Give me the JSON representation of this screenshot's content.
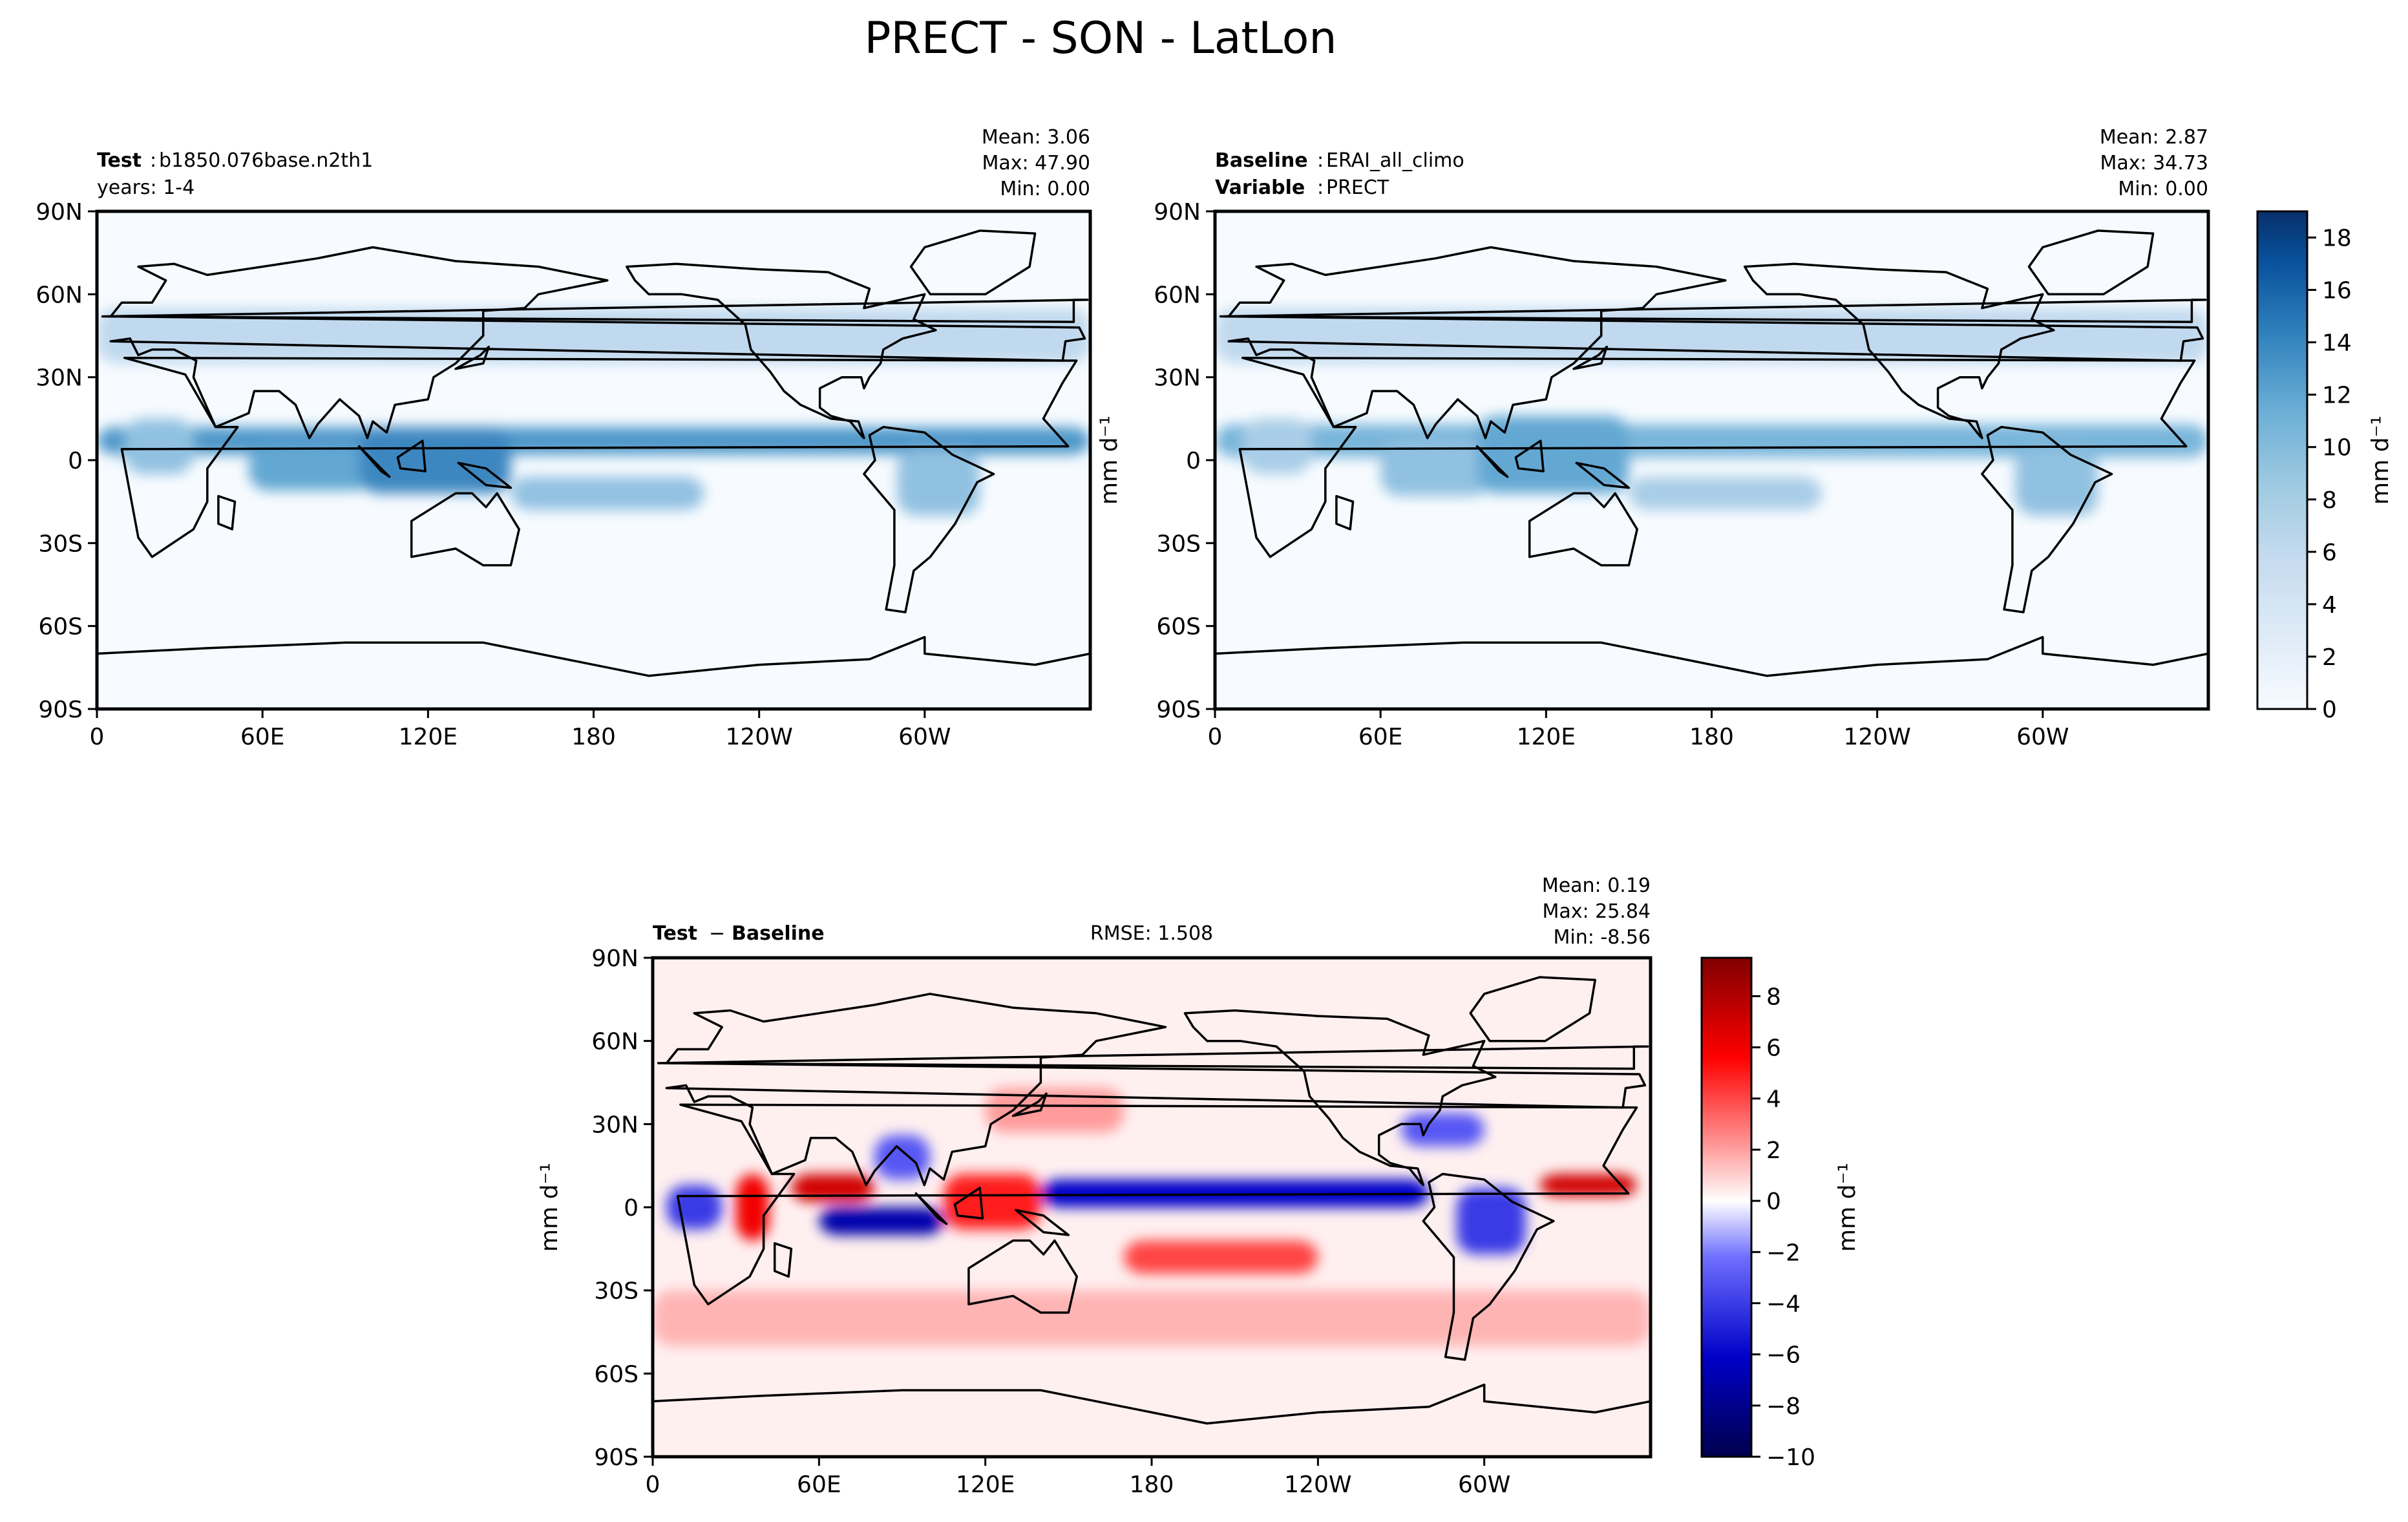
{
  "figure": {
    "suptitle": "PRECT - SON - LatLon",
    "colors": {
      "frame": "#000000",
      "blues_low": "#f7fbff",
      "blues_high": "#08306b",
      "div_low": "#00004d",
      "div_mid": "#ffffff",
      "div_high": "#800000"
    }
  },
  "chart_data": [
    {
      "type": "heatmap",
      "panel": "test",
      "label_bold": "Test",
      "label_text": "b1850.076base.n2th1",
      "label_line2": "years: 1-4",
      "stats": {
        "mean": "Mean:  3.06",
        "max": "Max: 47.90",
        "min": "Min:  0.00"
      },
      "x_ticks": [
        "0",
        "60E",
        "120E",
        "180",
        "120W",
        "60W"
      ],
      "y_ticks": [
        "90N",
        "60N",
        "30N",
        "0",
        "30S",
        "60S",
        "90S"
      ],
      "xlim": [
        0,
        360
      ],
      "ylim": [
        -90,
        90
      ],
      "colormap": "Blues",
      "features": [
        {
          "kind": "itcz",
          "lon": [
            0,
            360
          ],
          "lat": 7,
          "width": 5,
          "value": 9
        },
        {
          "kind": "indian-ocean",
          "lon": [
            55,
            100
          ],
          "lat": -3,
          "width": 8,
          "value": 8
        },
        {
          "kind": "maritime-continent",
          "lon": [
            95,
            150
          ],
          "lat": 0,
          "width": 12,
          "value": 10
        },
        {
          "kind": "spcz",
          "lon": [
            150,
            220
          ],
          "lat": -12,
          "width": 6,
          "value": 6
        },
        {
          "kind": "africa",
          "lon": [
            10,
            35
          ],
          "lat": 5,
          "width": 10,
          "value": 6
        },
        {
          "kind": "south-america",
          "lon": [
            290,
            320
          ],
          "lat": -8,
          "width": 12,
          "value": 6
        },
        {
          "kind": "storm-tracks",
          "lon": [
            0,
            360
          ],
          "lat": 45,
          "width": 10,
          "value": 4
        }
      ]
    },
    {
      "type": "heatmap",
      "panel": "baseline",
      "label_bold": "Baseline",
      "label_text": "ERAI_all_climo",
      "label_bold2": "Variable",
      "label_text2": "PRECT",
      "stats": {
        "mean": "Mean:  2.87",
        "max": "Max: 34.73",
        "min": "Min:  0.00"
      },
      "x_ticks": [
        "0",
        "60E",
        "120E",
        "180",
        "120W",
        "60W"
      ],
      "y_ticks": [
        "90N",
        "60N",
        "30N",
        "0",
        "30S",
        "60S",
        "90S"
      ],
      "xlim": [
        0,
        360
      ],
      "ylim": [
        -90,
        90
      ],
      "colormap": "Blues",
      "colorbar": {
        "ticks": [
          "0",
          "2",
          "4",
          "6",
          "8",
          "10",
          "12",
          "14",
          "16",
          "18"
        ],
        "range": [
          0,
          19
        ],
        "units": "mm d⁻¹"
      },
      "ylabel": "mm d⁻¹",
      "features": [
        {
          "kind": "itcz",
          "lon": [
            0,
            360
          ],
          "lat": 7,
          "width": 6,
          "value": 7
        },
        {
          "kind": "indian-ocean",
          "lon": [
            60,
            100
          ],
          "lat": -3,
          "width": 10,
          "value": 6
        },
        {
          "kind": "maritime-continent",
          "lon": [
            95,
            150
          ],
          "lat": 2,
          "width": 14,
          "value": 8
        },
        {
          "kind": "spcz",
          "lon": [
            150,
            220
          ],
          "lat": -12,
          "width": 6,
          "value": 5
        },
        {
          "kind": "africa",
          "lon": [
            10,
            35
          ],
          "lat": 5,
          "width": 10,
          "value": 5
        },
        {
          "kind": "south-america",
          "lon": [
            290,
            320
          ],
          "lat": -8,
          "width": 12,
          "value": 6
        },
        {
          "kind": "storm-tracks",
          "lon": [
            0,
            360
          ],
          "lat": 45,
          "width": 10,
          "value": 4
        }
      ]
    },
    {
      "type": "heatmap",
      "panel": "difference",
      "label_bold": "Test",
      "label_minus": "−",
      "label_bold2": "Baseline",
      "rmse": "RMSE: 1.508",
      "stats": {
        "mean": "Mean:  0.19",
        "max": "Max: 25.84",
        "min": "Min: -8.56"
      },
      "x_ticks": [
        "0",
        "60E",
        "120E",
        "180",
        "120W",
        "60W"
      ],
      "y_ticks": [
        "90N",
        "60N",
        "30N",
        "0",
        "30S",
        "60S",
        "90S"
      ],
      "xlim": [
        0,
        360
      ],
      "ylim": [
        -90,
        90
      ],
      "colormap": "seismic",
      "colorbar": {
        "ticks": [
          "−10",
          "−8",
          "−6",
          "−4",
          "−2",
          "0",
          "2",
          "4",
          "6",
          "8"
        ],
        "range": [
          -10,
          9.5
        ],
        "units": "mm d⁻¹"
      },
      "ylabel": "mm d⁻¹",
      "features": [
        {
          "kind": "arabian-sea-wet",
          "lon": [
            50,
            80
          ],
          "lat": 7,
          "width": 5,
          "value": 7
        },
        {
          "kind": "indian-ocean-dry",
          "lon": [
            60,
            105
          ],
          "lat": -5,
          "width": 5,
          "value": -7
        },
        {
          "kind": "east-africa-wet",
          "lon": [
            30,
            42
          ],
          "lat": 0,
          "width": 12,
          "value": 6
        },
        {
          "kind": "west-africa-dry",
          "lon": [
            5,
            25
          ],
          "lat": 0,
          "width": 8,
          "value": -4
        },
        {
          "kind": "maritime-wet",
          "lon": [
            105,
            140
          ],
          "lat": 2,
          "width": 10,
          "value": 5
        },
        {
          "kind": "pacific-dry",
          "lon": [
            140,
            280
          ],
          "lat": 5,
          "width": 5,
          "value": -6
        },
        {
          "kind": "spcz-wet",
          "lon": [
            170,
            240
          ],
          "lat": -18,
          "width": 6,
          "value": 4
        },
        {
          "kind": "atlantic-wet",
          "lon": [
            320,
            355
          ],
          "lat": 8,
          "width": 4,
          "value": 7
        },
        {
          "kind": "amazon-dry",
          "lon": [
            290,
            315
          ],
          "lat": -5,
          "width": 12,
          "value": -4
        },
        {
          "kind": "gulf-dry",
          "lon": [
            270,
            300
          ],
          "lat": 28,
          "width": 6,
          "value": -3
        },
        {
          "kind": "nw-pacific-wet",
          "lon": [
            120,
            170
          ],
          "lat": 35,
          "width": 8,
          "value": 2
        },
        {
          "kind": "bay-bengal-dry",
          "lon": [
            80,
            100
          ],
          "lat": 18,
          "width": 8,
          "value": -3
        },
        {
          "kind": "southern-ocean-wet",
          "lon": [
            0,
            360
          ],
          "lat": -40,
          "width": 10,
          "value": 1.5
        }
      ]
    }
  ]
}
